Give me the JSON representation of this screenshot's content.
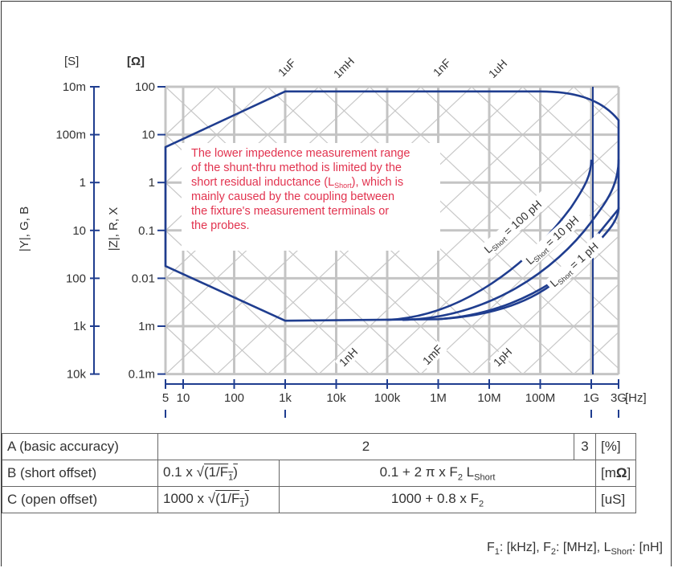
{
  "y_axis_admittance": {
    "unit": "[S]",
    "ticks": [
      "10m",
      "100m",
      "1",
      "10",
      "100",
      "1k",
      "10k"
    ],
    "label": "|Y|, G, B"
  },
  "y_axis_impedance": {
    "unit": "[Ω]",
    "ticks": [
      "100",
      "10",
      "1",
      "0.1",
      "0.01",
      "1m",
      "0.1m"
    ],
    "label": "|Z|, R, X"
  },
  "x_axis": {
    "unit": "[Hz]",
    "ticks": [
      "5",
      "10",
      "100",
      "1k",
      "10k",
      "100k",
      "1M",
      "10M",
      "100M",
      "1G",
      "3G"
    ]
  },
  "diagonal_labels": {
    "top": [
      "1uF",
      "1mH",
      "1nF",
      "1uH"
    ],
    "bottom": [
      "1nH",
      "1mF",
      "1pH"
    ]
  },
  "annotation": [
    "The lower impedence measurement range",
    "of the shunt-thru method is limited by the",
    "short residual inductance (L",
    "), which is",
    "mainly caused by the coupling between",
    "the fixture's measurement terminals or",
    "the probes."
  ],
  "annotation_sub": "Short",
  "curve_labels": [
    {
      "main": "L",
      "sub": "Short",
      "rest": " = 100 pH"
    },
    {
      "main": "L",
      "sub": "Short",
      "rest": " = 10 pH"
    },
    {
      "main": "L",
      "sub": "Short",
      "rest": " = 1 pH"
    }
  ],
  "chart_data": {
    "type": "area",
    "x_scale": "log",
    "y_scale": "log",
    "x_range_hz": [
      5,
      3000000000
    ],
    "y_range_ohm": [
      0.0001,
      100
    ],
    "boundary_points": [
      {
        "x_hz": 5,
        "z_ohm": 5.5
      },
      {
        "x_hz": 1000,
        "z_ohm": 80
      },
      {
        "x_hz": 100000000,
        "z_ohm": 80
      },
      {
        "x_hz": 1000000000,
        "z_ohm": 50
      },
      {
        "x_hz": 3000000000,
        "z_ohm": 20
      },
      {
        "x_hz": 3000000000,
        "z_ohm": 0.3
      },
      {
        "x_hz": 1000,
        "z_ohm": 0.0013
      },
      {
        "x_hz": 5,
        "z_ohm": 0.018
      }
    ],
    "series": [
      {
        "name": "L Short = 100 pH"
      },
      {
        "name": "L Short = 10 pH"
      },
      {
        "name": "L Short = 1 pH"
      }
    ]
  },
  "table": {
    "rows": [
      {
        "label": "A (basic accuracy)",
        "value_a": "2",
        "value_b": "3",
        "unit": "[%]"
      },
      {
        "label": "B (short offset)",
        "low_pre": "0.1 x ",
        "low_sqrt": "(1/F",
        "low_sub": "1",
        "low_post": ")",
        "high_pre": "0.1 + 2 π x F",
        "high_sub": "2",
        "high_mid": " L",
        "high_sub2": "Short",
        "unit_pre": "[m",
        "unit_bold": "Ω",
        "unit_post": "]"
      },
      {
        "label": "C (open offset)",
        "low_pre": "1000 x ",
        "low_sqrt": "(1/F",
        "low_sub": "1",
        "low_post": ")",
        "high_pre": "1000 + 0.8 x F",
        "high_sub": "2",
        "unit": "[uS]"
      }
    ],
    "sqrt_symbol": "√"
  },
  "footnote": {
    "f1": "F",
    "f1_sub": "1",
    "f1_unit": ": [kHz], ",
    "f2": "F",
    "f2_sub": "2",
    "f2_unit": ": [MHz], ",
    "ls": "L",
    "ls_sub": "Short",
    "ls_unit": ": [nH]"
  }
}
